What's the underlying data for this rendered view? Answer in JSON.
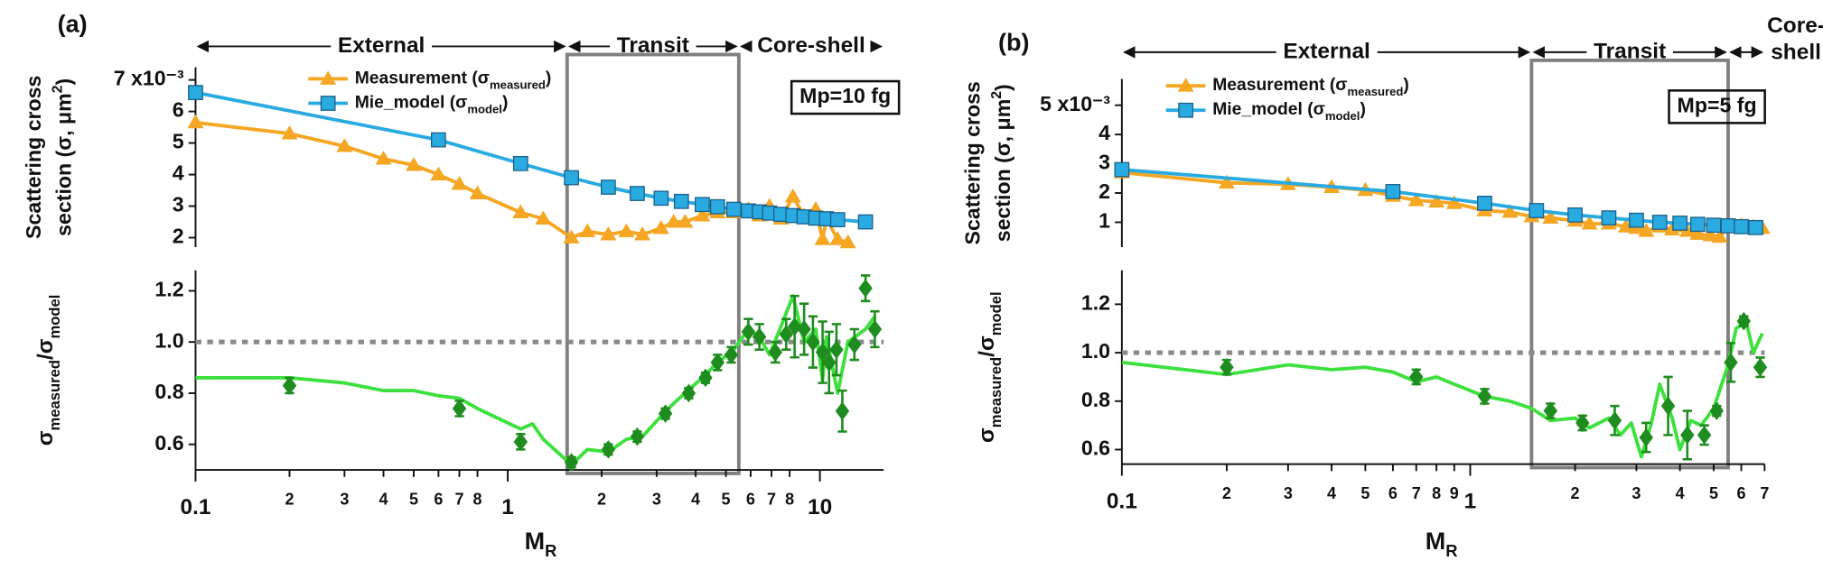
{
  "chart_data": [
    {
      "type": "line",
      "panel_label": "(a)",
      "ylabel": [
        [
          {
            "text": "Scattering cross"
          }
        ],
        [
          {
            "text": "section (σ, μm"
          },
          {
            "text": "2",
            "sup": true
          },
          {
            "text": ")"
          }
        ]
      ],
      "xscale": "log",
      "xlim": [
        0.1,
        16
      ],
      "ylim": [
        1.7,
        7.4
      ],
      "yticks": [
        2,
        3,
        4,
        5,
        6,
        {
          "value": 7,
          "label": "7 x10⁻³"
        }
      ],
      "regions": [
        {
          "label": [
            "External"
          ],
          "from": 0.1,
          "to": 1.55
        },
        {
          "label": [
            "Transit"
          ],
          "from": 1.55,
          "to": 5.5,
          "highlight": true
        },
        {
          "label": [
            "Core-shell"
          ],
          "from": 5.5,
          "to": 16
        }
      ],
      "annotation": "Mp=10 fg",
      "series": [
        {
          "name": [
            {
              "text": "Measurement (σ"
            },
            {
              "text": "measured",
              "sub": true
            },
            {
              "text": ")"
            }
          ],
          "color": "#f5a623",
          "marker": "triangle",
          "x": [
            0.1,
            0.2,
            0.3,
            0.4,
            0.5,
            0.6,
            0.7,
            0.8,
            1.1,
            1.3,
            1.6,
            1.8,
            2.1,
            2.4,
            2.7,
            3.1,
            3.4,
            3.7,
            4.2,
            4.7,
            5.3,
            5.9,
            6.4,
            6.9,
            7.5,
            8.2,
            8.9,
            9.7,
            10.2,
            10.5,
            11.4,
            12.3
          ],
          "values": [
            5.65,
            5.3,
            4.9,
            4.5,
            4.3,
            4.0,
            3.7,
            3.4,
            2.8,
            2.6,
            2.0,
            2.2,
            2.1,
            2.2,
            2.1,
            2.3,
            2.5,
            2.5,
            2.7,
            2.8,
            2.8,
            2.9,
            2.7,
            3.0,
            2.6,
            3.3,
            2.7,
            2.9,
            1.95,
            2.6,
            1.95,
            1.85
          ]
        },
        {
          "name": [
            {
              "text": "Mie_model (σ"
            },
            {
              "text": "model",
              "sub": true
            },
            {
              "text": ")"
            }
          ],
          "color": "#29abe2",
          "marker": "square",
          "x": [
            0.1,
            0.6,
            1.1,
            1.6,
            2.1,
            2.6,
            3.1,
            3.6,
            4.2,
            4.7,
            5.3,
            5.9,
            6.4,
            6.9,
            7.5,
            8.2,
            8.9,
            9.7,
            10.5,
            11.4,
            14
          ],
          "values": [
            6.6,
            5.1,
            4.35,
            3.9,
            3.6,
            3.4,
            3.25,
            3.15,
            3.05,
            2.98,
            2.9,
            2.85,
            2.82,
            2.78,
            2.74,
            2.7,
            2.66,
            2.62,
            2.6,
            2.57,
            2.5
          ]
        }
      ]
    },
    {
      "type": "line",
      "ylabel": [
        {
          "text": "σ"
        },
        {
          "text": "measured",
          "sub": true
        },
        {
          "text": "/σ"
        },
        {
          "text": "model",
          "sub": true
        }
      ],
      "xlabel": [
        {
          "text": "M"
        },
        {
          "text": "R",
          "sub": true
        }
      ],
      "xscale": "log",
      "xlim": [
        0.1,
        16
      ],
      "xticks": [
        0.1,
        {
          "value": 0.2,
          "label": "2"
        },
        {
          "value": 0.3,
          "label": "3"
        },
        {
          "value": 0.4,
          "label": "4"
        },
        {
          "value": 0.5,
          "label": "5"
        },
        {
          "value": 0.6,
          "label": "6"
        },
        {
          "value": 0.7,
          "label": "7"
        },
        {
          "value": 0.8,
          "label": "8"
        },
        1,
        2,
        3,
        4,
        5,
        6,
        7,
        8,
        10
      ],
      "ylim": [
        0.5,
        1.28
      ],
      "yticks": [
        0.6,
        0.8,
        {
          "value": 1,
          "label": "1.0"
        },
        1.2
      ],
      "reference_line": 1,
      "series": [
        {
          "color": "#3de03d",
          "x": [
            0.1,
            0.2,
            0.3,
            0.4,
            0.5,
            0.6,
            0.7,
            0.8,
            1.1,
            1.2,
            1.3,
            1.6,
            1.8,
            2.1,
            2.4,
            2.7,
            3.1,
            3.4,
            3.7,
            4.2,
            4.7,
            5.3,
            5.9,
            6.4,
            6.9,
            7.5,
            8.2,
            8.9,
            9.7,
            10.2,
            10.5,
            11.4,
            12.3,
            14,
            15
          ],
          "values": [
            0.86,
            0.86,
            0.84,
            0.81,
            0.81,
            0.79,
            0.78,
            0.74,
            0.66,
            0.68,
            0.62,
            0.52,
            0.58,
            0.57,
            0.62,
            0.63,
            0.71,
            0.76,
            0.8,
            0.86,
            0.92,
            0.97,
            1.05,
            1.02,
            0.95,
            1.06,
            1.18,
            1.0,
            1.05,
            0.85,
            1.02,
            0.8,
            1.0,
            1.05,
            1.1
          ]
        },
        {
          "color": "#1e8c1e",
          "marker": "diamond",
          "connect": false,
          "x": [
            0.2,
            0.7,
            1.1,
            1.6,
            2.1,
            2.6,
            3.2,
            3.8,
            4.3,
            4.7,
            5.2,
            5.9,
            6.4,
            7.2,
            7.8,
            8.3,
            8.9,
            9.5,
            10.2,
            10.7,
            11.3,
            11.8,
            12.9,
            14,
            15
          ],
          "values": [
            0.83,
            0.74,
            0.61,
            0.53,
            0.58,
            0.63,
            0.72,
            0.8,
            0.86,
            0.92,
            0.95,
            1.04,
            1.02,
            0.96,
            1.03,
            1.06,
            1.05,
            1.0,
            0.96,
            0.92,
            0.97,
            0.73,
            0.99,
            1.21,
            1.05
          ],
          "errors": [
            0.03,
            0.03,
            0.03,
            0.02,
            0.02,
            0.02,
            0.02,
            0.02,
            0.02,
            0.03,
            0.03,
            0.05,
            0.05,
            0.04,
            0.06,
            0.12,
            0.1,
            0.1,
            0.12,
            0.12,
            0.1,
            0.08,
            0.06,
            0.05,
            0.07
          ]
        }
      ]
    },
    {
      "type": "line",
      "panel_label": "(b)",
      "ylabel": [
        [
          {
            "text": "Scattering cross"
          }
        ],
        [
          {
            "text": "section (σ, μm"
          },
          {
            "text": "2",
            "sup": true
          },
          {
            "text": ")"
          }
        ]
      ],
      "xscale": "log",
      "xlim": [
        0.1,
        7
      ],
      "ylim": [
        0.15,
        5.9
      ],
      "yticks": [
        1,
        2,
        3,
        4,
        {
          "value": 5,
          "label": "5 x10⁻³"
        }
      ],
      "regions": [
        {
          "label": [
            "External"
          ],
          "from": 0.1,
          "to": 1.5
        },
        {
          "label": [
            "Transit"
          ],
          "from": 1.5,
          "to": 5.5,
          "highlight": true
        },
        {
          "label": [
            "Core-",
            "shell"
          ],
          "from": 5.5,
          "to": 7
        }
      ],
      "annotation": "Mp=5 fg",
      "series": [
        {
          "name": [
            {
              "text": "Measurement (σ"
            },
            {
              "text": "measured",
              "sub": true
            },
            {
              "text": ")"
            }
          ],
          "color": "#f5a623",
          "marker": "triangle",
          "x": [
            0.1,
            0.2,
            0.3,
            0.4,
            0.5,
            0.6,
            0.7,
            0.8,
            0.9,
            1.1,
            1.3,
            1.5,
            1.7,
            2.0,
            2.2,
            2.5,
            2.8,
            3.0,
            3.2,
            3.5,
            3.8,
            4.2,
            4.5,
            4.9,
            5.2,
            5.5,
            6.0,
            6.5,
            6.9
          ],
          "values": [
            2.7,
            2.35,
            2.3,
            2.2,
            2.1,
            1.9,
            1.75,
            1.7,
            1.65,
            1.4,
            1.35,
            1.2,
            1.15,
            1.05,
            0.95,
            0.95,
            0.85,
            0.8,
            0.7,
            0.85,
            0.75,
            0.7,
            0.6,
            0.55,
            0.5,
            0.85,
            0.9,
            0.85,
            0.8
          ]
        },
        {
          "name": [
            {
              "text": "Mie_model (σ"
            },
            {
              "text": "model",
              "sub": true
            },
            {
              "text": ")"
            }
          ],
          "color": "#29abe2",
          "marker": "square",
          "x": [
            0.1,
            0.6,
            1.1,
            1.55,
            2.0,
            2.5,
            3.0,
            3.5,
            4.0,
            4.5,
            5.0,
            5.5,
            6.0,
            6.6
          ],
          "values": [
            2.8,
            2.05,
            1.65,
            1.4,
            1.25,
            1.15,
            1.07,
            1.0,
            0.97,
            0.93,
            0.9,
            0.88,
            0.85,
            0.82
          ]
        }
      ]
    },
    {
      "type": "line",
      "ylabel": [
        {
          "text": "σ"
        },
        {
          "text": "measured",
          "sub": true
        },
        {
          "text": "/σ"
        },
        {
          "text": "model",
          "sub": true
        }
      ],
      "xlabel": [
        {
          "text": "M"
        },
        {
          "text": "R",
          "sub": true
        }
      ],
      "xscale": "log",
      "xlim": [
        0.1,
        7
      ],
      "xticks": [
        0.1,
        {
          "value": 0.2,
          "label": "2"
        },
        {
          "value": 0.3,
          "label": "3"
        },
        {
          "value": 0.4,
          "label": "4"
        },
        {
          "value": 0.5,
          "label": "5"
        },
        {
          "value": 0.6,
          "label": "6"
        },
        {
          "value": 0.7,
          "label": "7"
        },
        {
          "value": 0.8,
          "label": "8"
        },
        {
          "value": 0.9,
          "label": "9"
        },
        1,
        2,
        3,
        4,
        5,
        6,
        7
      ],
      "ylim": [
        0.54,
        1.34
      ],
      "yticks": [
        0.6,
        0.8,
        {
          "value": 1,
          "label": "1.0"
        },
        1.2
      ],
      "reference_line": 1,
      "series": [
        {
          "color": "#3de03d",
          "x": [
            0.1,
            0.2,
            0.3,
            0.4,
            0.5,
            0.6,
            0.7,
            0.8,
            0.9,
            1.1,
            1.3,
            1.5,
            1.7,
            2.0,
            2.2,
            2.5,
            2.7,
            2.9,
            3.1,
            3.3,
            3.5,
            3.8,
            4.0,
            4.3,
            4.6,
            5.0,
            5.5,
            5.8,
            6.2,
            6.5,
            6.9
          ],
          "values": [
            0.96,
            0.91,
            0.95,
            0.93,
            0.94,
            0.92,
            0.88,
            0.9,
            0.87,
            0.82,
            0.8,
            0.77,
            0.72,
            0.73,
            0.69,
            0.73,
            0.66,
            0.71,
            0.57,
            0.7,
            0.87,
            0.73,
            0.6,
            0.72,
            0.7,
            0.77,
            0.95,
            1.1,
            1.13,
            1.0,
            1.08
          ]
        },
        {
          "color": "#1e8c1e",
          "marker": "diamond",
          "connect": false,
          "x": [
            0.2,
            0.7,
            1.1,
            1.7,
            2.1,
            2.6,
            3.2,
            3.7,
            4.2,
            4.7,
            5.1,
            5.6,
            6.1,
            6.8
          ],
          "values": [
            0.94,
            0.9,
            0.82,
            0.76,
            0.71,
            0.72,
            0.65,
            0.78,
            0.66,
            0.66,
            0.76,
            0.96,
            1.13,
            0.94
          ],
          "errors": [
            0.03,
            0.03,
            0.03,
            0.03,
            0.03,
            0.06,
            0.06,
            0.12,
            0.1,
            0.04,
            0.02,
            0.08,
            0.02,
            0.04
          ]
        }
      ]
    }
  ]
}
